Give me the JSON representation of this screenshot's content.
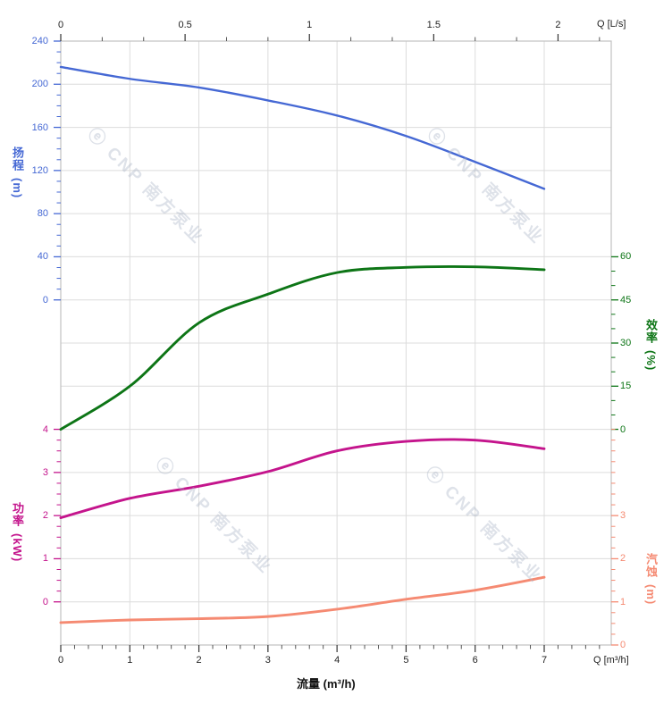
{
  "watermark": {
    "text": "ⓔ CNP 南方泵业"
  },
  "chart_data": {
    "type": "line",
    "title": "",
    "x_label_bottom": "流量 (m³/h)",
    "x_unit_bottom": "Q [m³/h]",
    "x_unit_top": "Q [L/s]",
    "x_ticks_bottom": [
      "0",
      "1",
      "2",
      "3",
      "4",
      "5",
      "6",
      "7"
    ],
    "x_ticks_top": [
      "0",
      "0.5",
      "1",
      "1.5",
      "2"
    ],
    "x_range_bottom_m3h": [
      0,
      7.97
    ],
    "x_range_top_ls": [
      0,
      2.21
    ],
    "grid": true,
    "x_values": [
      0,
      1,
      2,
      3,
      4,
      5,
      6,
      7
    ],
    "axes": {
      "head": {
        "label": "扬程",
        "unit": "(m)",
        "color": "#4568d4",
        "ticks": [
          240,
          200,
          160,
          120,
          80,
          40,
          0
        ],
        "range": [
          0,
          240
        ]
      },
      "efficiency": {
        "label": "效率",
        "unit": "(%)",
        "color": "#0d7516",
        "ticks": [
          60,
          45,
          30,
          15,
          0
        ],
        "range": [
          0,
          60
        ]
      },
      "power": {
        "label": "功率",
        "unit": "(kW)",
        "color": "#c4148c",
        "ticks": [
          4,
          3,
          2,
          1,
          0
        ],
        "range": [
          0,
          4
        ]
      },
      "npsh": {
        "label": "汽蚀",
        "unit": "(m)",
        "color": "#f58a72",
        "ticks": [
          3,
          2,
          1,
          0
        ],
        "range": [
          0,
          5
        ]
      }
    },
    "series": [
      {
        "name": "head",
        "axis": "head",
        "values": [
          216,
          205,
          197,
          185,
          171,
          152,
          128,
          103
        ]
      },
      {
        "name": "efficiency",
        "axis": "efficiency",
        "values": [
          0,
          15,
          37,
          47,
          54.5,
          56.3,
          56.5,
          55.5
        ]
      },
      {
        "name": "power",
        "axis": "power",
        "values": [
          1.95,
          2.4,
          2.68,
          3.02,
          3.5,
          3.72,
          3.75,
          3.55
        ]
      },
      {
        "name": "npsh",
        "axis": "npsh",
        "values": [
          0.52,
          0.58,
          0.61,
          0.66,
          0.83,
          1.06,
          1.27,
          1.57
        ]
      }
    ]
  }
}
